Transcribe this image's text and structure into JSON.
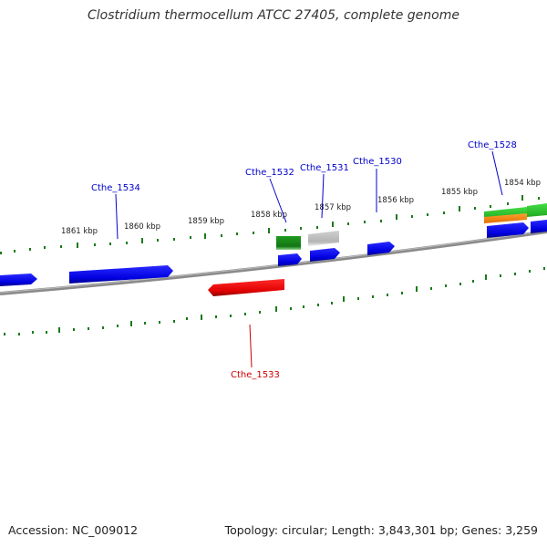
{
  "title": "Clostridium thermocellum ATCC 27405, complete genome",
  "footer": {
    "accession": "Accession: NC_009012",
    "summary": "Topology: circular; Length: 3,843,301 bp; Genes: 3,259"
  },
  "scale_labels": [
    "1861 kbp",
    "1860 kbp",
    "1859 kbp",
    "1858 kbp",
    "1857 kbp",
    "1856 kbp",
    "1855 kbp",
    "1854 kbp"
  ],
  "gene_labels": [
    {
      "name": "Cthe_1534",
      "color": "#0000cc"
    },
    {
      "name": "Cthe_1532",
      "color": "#0000cc"
    },
    {
      "name": "Cthe_1531",
      "color": "#0000cc"
    },
    {
      "name": "Cthe_1530",
      "color": "#0000cc"
    },
    {
      "name": "Cthe_1528",
      "color": "#0000cc"
    },
    {
      "name": "Cthe_1533",
      "color": "#cc0000"
    }
  ],
  "colors": {
    "cds_forward": "#0000ee",
    "cds_reverse": "#ee0000",
    "rna_dark_green": "#1a8a1a",
    "rna_light_green": "#33cc33",
    "orange": "#ff8c00",
    "gray_feature": "#bdbdbd",
    "backbone": "#808080",
    "ticks": "#1a7a1a"
  }
}
